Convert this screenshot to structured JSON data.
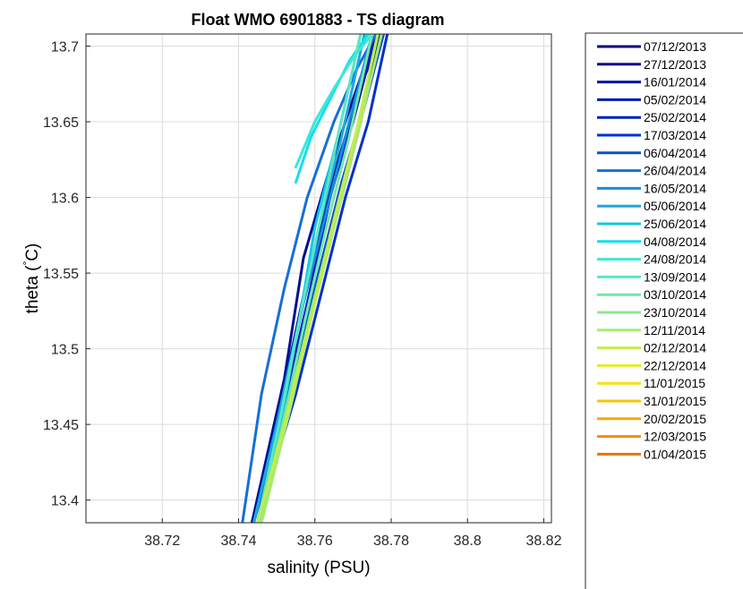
{
  "chart_data": {
    "type": "line",
    "title": "Float WMO 6901883 - TS diagram",
    "xlabel": "salinity (PSU)",
    "ylabel": "theta ( ° C)",
    "ylabel_main": "theta (",
    "ylabel_deg": "°",
    "ylabel_unit": "C)",
    "xlim": [
      38.7,
      38.822
    ],
    "ylim": [
      13.385,
      13.708
    ],
    "xticks": [
      38.72,
      38.74,
      38.76,
      38.78,
      38.8,
      38.82
    ],
    "xtick_labels": [
      "38.72",
      "38.74",
      "38.76",
      "38.78",
      "38.8",
      "38.82"
    ],
    "yticks": [
      13.4,
      13.45,
      13.5,
      13.55,
      13.6,
      13.65,
      13.7
    ],
    "ytick_labels": [
      "13.4",
      "13.45",
      "13.5",
      "13.55",
      "13.6",
      "13.65",
      "13.7"
    ],
    "grid": true,
    "legend_position": "outside-right",
    "series": [
      {
        "name": "07/12/2013",
        "color": "#000a7a",
        "x": [
          38.7435,
          38.75,
          38.756,
          38.762,
          38.768,
          38.773,
          38.778
        ],
        "y": [
          13.385,
          13.45,
          13.52,
          13.59,
          13.64,
          13.68,
          13.708
        ]
      },
      {
        "name": "27/12/2013",
        "color": "#00108f",
        "x": [
          38.7435,
          38.752,
          38.757,
          38.764,
          38.77,
          38.776
        ],
        "y": [
          13.385,
          13.48,
          13.56,
          13.62,
          13.665,
          13.708
        ]
      },
      {
        "name": "16/01/2014",
        "color": "#0014a0",
        "x": [
          38.744,
          38.753,
          38.76,
          38.767,
          38.772,
          38.777
        ],
        "y": [
          13.385,
          13.47,
          13.54,
          13.6,
          13.65,
          13.708
        ]
      },
      {
        "name": "05/02/2014",
        "color": "#001ab0",
        "x": [
          38.744,
          38.7515,
          38.757,
          38.7625,
          38.77,
          38.776
        ],
        "y": [
          13.385,
          13.47,
          13.535,
          13.59,
          13.65,
          13.708
        ]
      },
      {
        "name": "25/02/2014",
        "color": "#0020c0",
        "x": [
          38.745,
          38.752,
          38.758,
          38.764,
          38.77,
          38.776
        ],
        "y": [
          13.385,
          13.465,
          13.53,
          13.6,
          13.655,
          13.708
        ]
      },
      {
        "name": "17/03/2014",
        "color": "#0030cc",
        "x": [
          38.745,
          38.755,
          38.762,
          38.768,
          38.774,
          38.779
        ],
        "y": [
          13.385,
          13.47,
          13.54,
          13.6,
          13.65,
          13.708
        ]
      },
      {
        "name": "06/04/2014",
        "color": "#0a50d0",
        "x": [
          38.744,
          38.754,
          38.761,
          38.767,
          38.773,
          38.778
        ],
        "y": [
          13.385,
          13.48,
          13.55,
          13.61,
          13.66,
          13.708
        ]
      },
      {
        "name": "26/04/2014",
        "color": "#1570d6",
        "x": [
          38.741,
          38.746,
          38.752,
          38.758,
          38.765,
          38.771,
          38.776
        ],
        "y": [
          13.385,
          13.47,
          13.54,
          13.6,
          13.65,
          13.685,
          13.708
        ]
      },
      {
        "name": "16/05/2014",
        "color": "#1a8cdc",
        "x": [
          38.744,
          38.751,
          38.757,
          38.763,
          38.769,
          38.775
        ],
        "y": [
          13.385,
          13.46,
          13.53,
          13.59,
          13.65,
          13.708
        ]
      },
      {
        "name": "05/06/2014",
        "color": "#1ea8e0",
        "x": [
          38.744,
          38.75,
          38.756,
          38.761,
          38.767,
          38.773
        ],
        "y": [
          13.385,
          13.45,
          13.52,
          13.58,
          13.64,
          13.708
        ]
      },
      {
        "name": "25/06/2014",
        "color": "#14c8e4",
        "x": [
          38.745,
          38.751,
          38.756,
          38.76,
          38.766,
          38.772
        ],
        "y": [
          13.385,
          13.45,
          13.52,
          13.58,
          13.64,
          13.708
        ]
      },
      {
        "name": "04/08/2014",
        "color": "#10e0ec",
        "x": [
          38.755,
          38.759,
          38.764,
          38.769,
          38.774
        ],
        "y": [
          13.61,
          13.64,
          13.665,
          13.69,
          13.708
        ]
      },
      {
        "name": "24/08/2014",
        "color": "#3ee6d8",
        "x": [
          38.755,
          38.76,
          38.765,
          38.77,
          38.775
        ],
        "y": [
          13.62,
          13.65,
          13.672,
          13.692,
          13.708
        ]
      },
      {
        "name": "13/09/2014",
        "color": "#5ce6c2",
        "x": [
          38.745,
          38.751,
          38.756,
          38.761,
          38.766,
          38.772
        ],
        "y": [
          13.385,
          13.455,
          13.52,
          13.58,
          13.64,
          13.708
        ]
      },
      {
        "name": "03/10/2014",
        "color": "#74e6a8",
        "x": [
          38.7455,
          38.752,
          38.7575,
          38.763,
          38.769,
          38.775
        ],
        "y": [
          13.385,
          13.455,
          13.52,
          13.58,
          13.64,
          13.708
        ]
      },
      {
        "name": "23/10/2014",
        "color": "#8ee88e",
        "x": [
          38.746,
          38.753,
          38.759,
          38.765,
          38.771,
          38.7765
        ],
        "y": [
          13.385,
          13.46,
          13.525,
          13.585,
          13.645,
          13.708
        ]
      },
      {
        "name": "12/11/2014",
        "color": "#a8ea70",
        "x": [
          38.746,
          38.7535,
          38.7595,
          38.766,
          38.772,
          38.7775
        ],
        "y": [
          13.385,
          13.46,
          13.525,
          13.59,
          13.65,
          13.708
        ]
      },
      {
        "name": "02/12/2014",
        "color": "#c4ec4c",
        "x": [
          38.745,
          38.752,
          38.759,
          38.765,
          38.771,
          38.7765
        ],
        "y": [
          13.385,
          13.45,
          13.52,
          13.585,
          13.645,
          13.708
        ]
      },
      {
        "name": "22/12/2014",
        "color": "#e0ee2a",
        "x": [],
        "y": []
      },
      {
        "name": "11/01/2015",
        "color": "#f6e210",
        "x": [],
        "y": []
      },
      {
        "name": "31/01/2015",
        "color": "#f8c40a",
        "x": [],
        "y": []
      },
      {
        "name": "20/02/2015",
        "color": "#f8a808",
        "x": [],
        "y": []
      },
      {
        "name": "12/03/2015",
        "color": "#f48c06",
        "x": [],
        "y": []
      },
      {
        "name": "01/04/2015",
        "color": "#ee7004",
        "x": [],
        "y": []
      }
    ]
  },
  "colors": {
    "axes": "#262626",
    "grid": "#dcdcdc",
    "background": "#ffffff"
  }
}
